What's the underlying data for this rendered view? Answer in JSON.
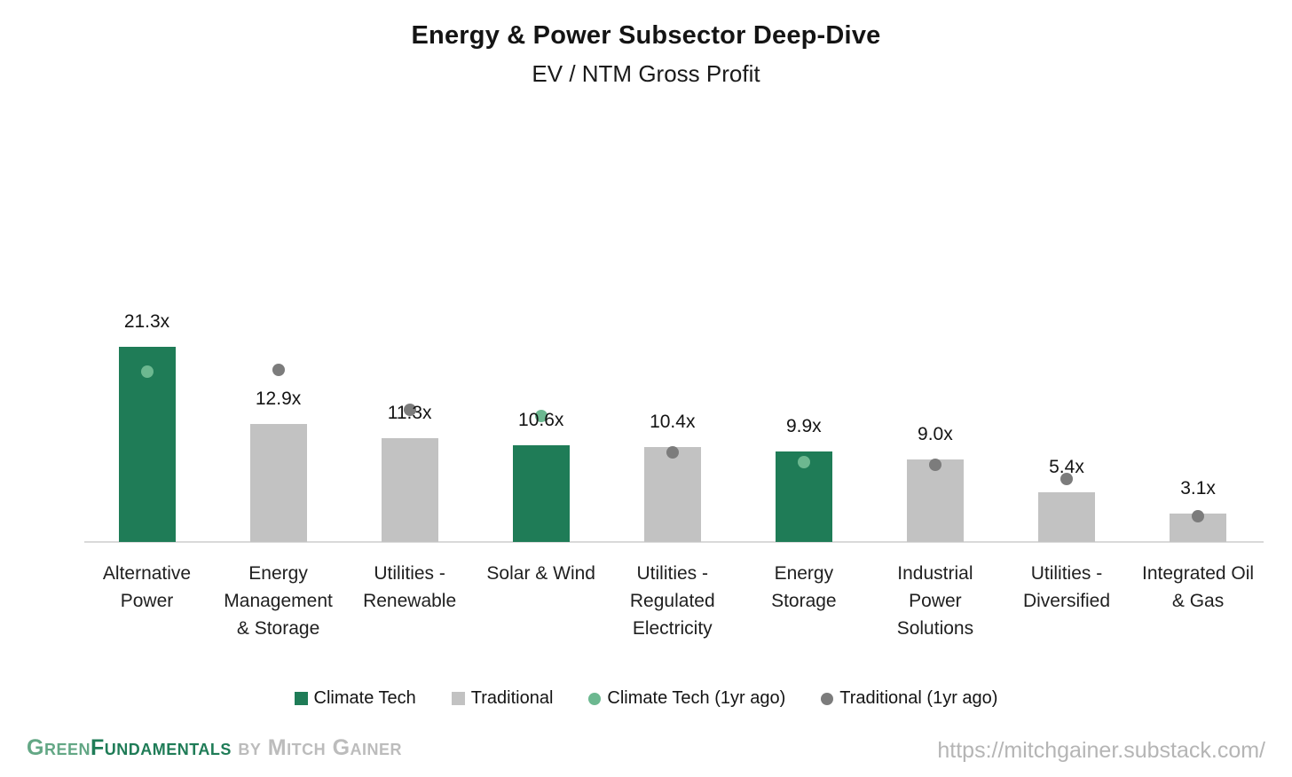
{
  "title": "Energy & Power Subsector Deep-Dive",
  "subtitle": "EV / NTM Gross Profit",
  "chart_data": {
    "type": "bar",
    "title": "Energy & Power Subsector Deep-Dive",
    "subtitle": "EV / NTM Gross Profit",
    "unit_suffix": "x",
    "ylim": [
      0,
      22
    ],
    "grid": false,
    "y_axis_shown": false,
    "legend_position": "bottom",
    "categories": [
      "Alternative Power",
      "Energy Management & Storage",
      "Utilities - Renewable",
      "Solar & Wind",
      "Utilities - Regulated Electricity",
      "Energy Storage",
      "Industrial Power Solutions",
      "Utilities - Diversified",
      "Integrated Oil & Gas"
    ],
    "category_lines": [
      [
        "Alternative",
        "Power"
      ],
      [
        "Energy",
        "Management",
        "& Storage"
      ],
      [
        "Utilities -",
        "Renewable"
      ],
      [
        "Solar & Wind"
      ],
      [
        "Utilities -",
        "Regulated",
        "Electricity"
      ],
      [
        "Energy",
        "Storage"
      ],
      [
        "Industrial",
        "Power",
        "Solutions"
      ],
      [
        "Utilities -",
        "Diversified"
      ],
      [
        "Integrated Oil",
        "& Gas"
      ]
    ],
    "series": [
      {
        "name": "Climate Tech",
        "type": "bar",
        "color": "#1f7c57",
        "values": [
          21.3,
          null,
          null,
          10.6,
          null,
          9.9,
          null,
          null,
          null
        ]
      },
      {
        "name": "Traditional",
        "type": "bar",
        "color": "#c2c2c2",
        "values": [
          null,
          12.9,
          11.3,
          null,
          10.4,
          null,
          9.0,
          5.4,
          3.1
        ]
      },
      {
        "name": "Climate Tech (1yr ago)",
        "type": "dot",
        "color": "#6cb890",
        "values": [
          18.6,
          null,
          null,
          13.7,
          null,
          8.7,
          null,
          null,
          null
        ]
      },
      {
        "name": "Traditional (1yr ago)",
        "type": "dot",
        "color": "#7c7c7c",
        "values": [
          null,
          18.8,
          14.4,
          null,
          9.8,
          null,
          8.4,
          6.9,
          2.8
        ]
      }
    ],
    "bar_labels": [
      "21.3x",
      "12.9x",
      "11.3x",
      "10.6x",
      "10.4x",
      "9.9x",
      "9.0x",
      "5.4x",
      "3.1x"
    ]
  },
  "legend": {
    "items": [
      {
        "label": "Climate Tech",
        "marker": "square",
        "color": "#1f7c57"
      },
      {
        "label": "Traditional",
        "marker": "square",
        "color": "#c2c2c2"
      },
      {
        "label": "Climate Tech (1yr ago)",
        "marker": "circle",
        "color": "#6cb890"
      },
      {
        "label": "Traditional (1yr ago)",
        "marker": "circle",
        "color": "#7c7c7c"
      }
    ]
  },
  "footer": {
    "brand_segments": [
      {
        "text": "Green",
        "color": "#63a785"
      },
      {
        "text": "Fundamentals",
        "color": "#1f7c57"
      },
      {
        "text": " by Mitch Gainer",
        "color": "#bcbcbc"
      }
    ],
    "url": "https://mitchgainer.substack.com/"
  },
  "colors": {
    "climate_tech": "#1f7c57",
    "traditional": "#c2c2c2",
    "climate_tech_1yr": "#6cb890",
    "traditional_1yr": "#7c7c7c",
    "axis_line": "#d9d9d9"
  }
}
